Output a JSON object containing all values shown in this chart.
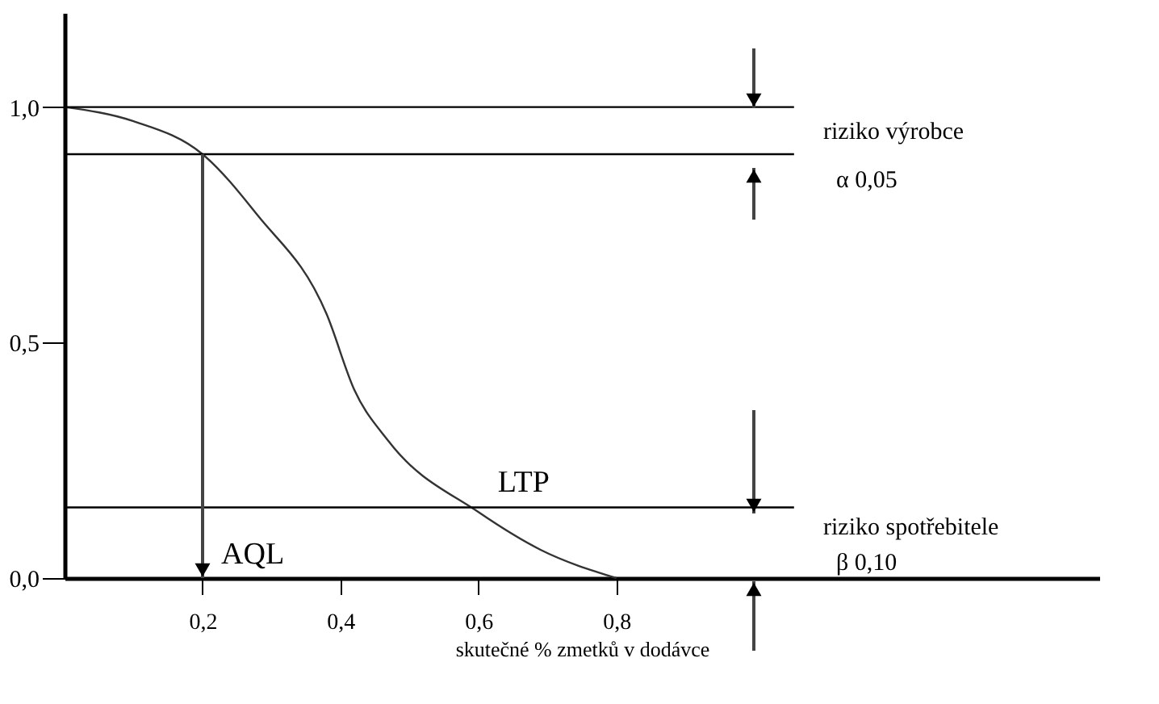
{
  "chart_data": {
    "type": "line",
    "xlabel": "skutečné % zmetků v dodávce",
    "series": [
      {
        "color": "#333333",
        "x": [
          0,
          0.1,
          0.2,
          0.28,
          0.38,
          0.42,
          0.47,
          0.6,
          0.69,
          0.8
        ],
        "values": [
          1.0,
          0.97,
          0.9,
          0.77,
          0.56,
          0.4,
          0.29,
          0.14,
          0.06,
          0
        ]
      }
    ],
    "xlim": [
      0,
      1.5
    ],
    "ylim": [
      0,
      1.2
    ],
    "xticks": [
      {
        "value": 0.2,
        "label": "0,2"
      },
      {
        "value": 0.4,
        "label": "0,4"
      },
      {
        "value": 0.6,
        "label": "0,6"
      },
      {
        "value": 0.8,
        "label": "0,8"
      }
    ],
    "yticks": [
      {
        "value": 0,
        "label": "0,0"
      },
      {
        "value": 0.5,
        "label": "0,5"
      },
      {
        "value": 1.0,
        "label": "1,0"
      }
    ],
    "ref_lines": [
      {
        "axis": "y",
        "value": 1.0
      },
      {
        "axis": "y",
        "value": 0.9
      },
      {
        "axis": "y",
        "value": 0.15
      }
    ],
    "annotations": [
      "AQL",
      {
        "text": "LTP",
        "x": 0.6,
        "y": 0.15
      },
      "riziko výrobce",
      "α 0,05",
      "riziko spotřebitele",
      "β 0,10"
    ],
    "grid": false,
    "marker": "none",
    "line_style": "solid"
  }
}
